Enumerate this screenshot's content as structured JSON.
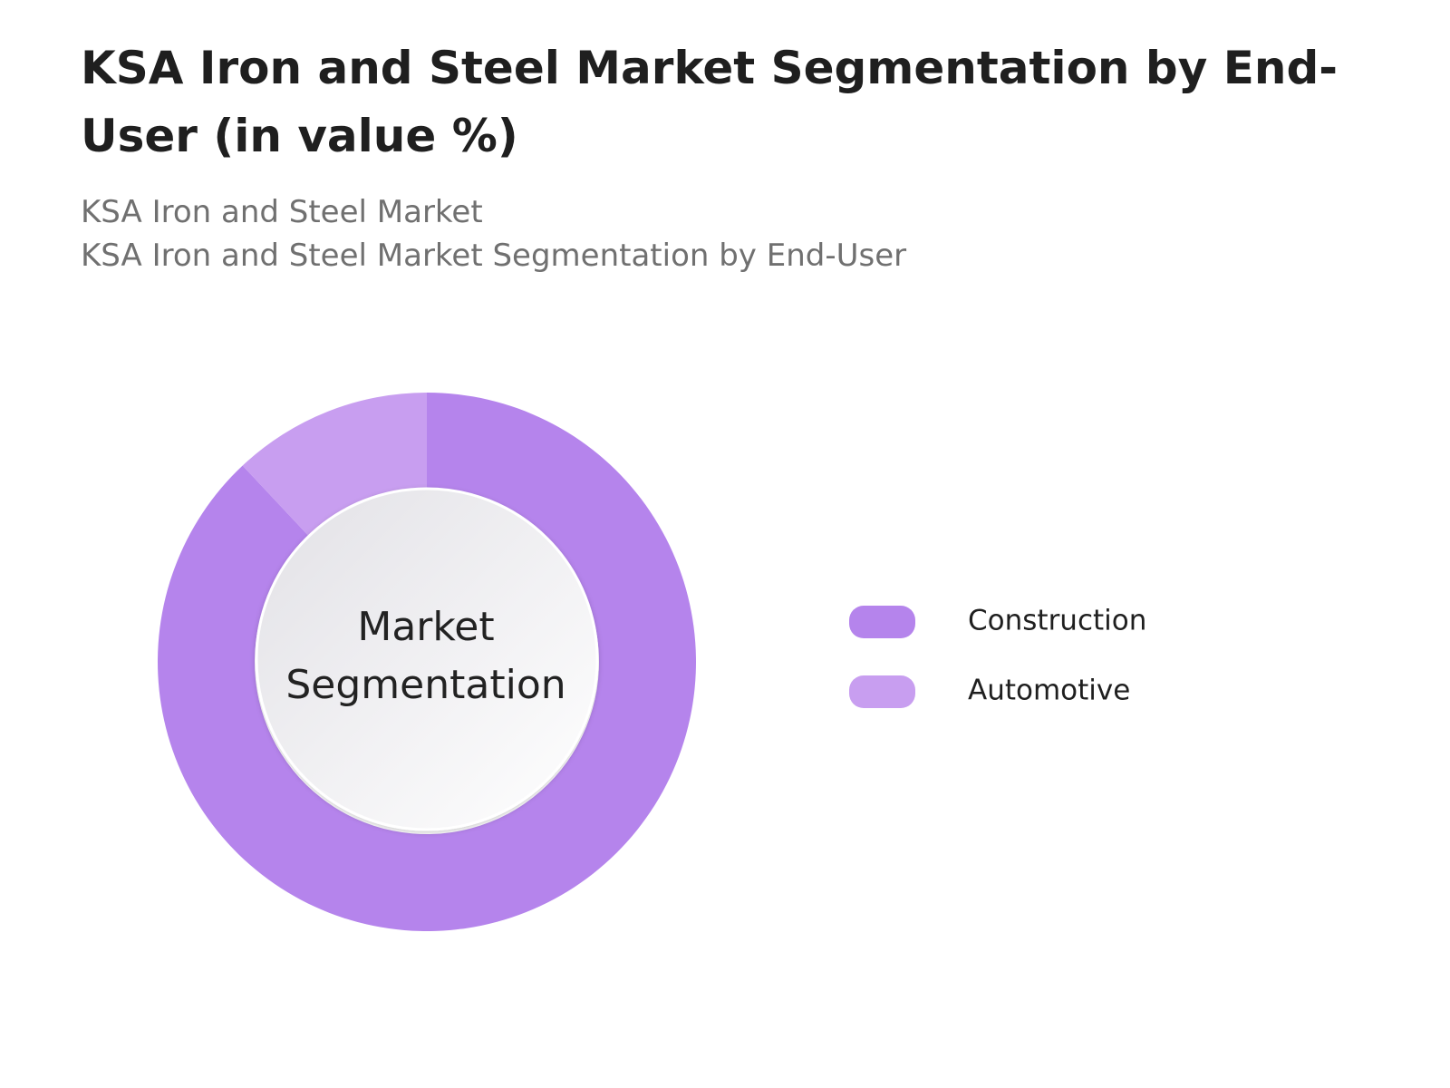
{
  "chart_data": {
    "type": "donut",
    "title": "KSA Iron and Steel Market Segmentation by End-User (in value %)",
    "subtitle": [
      "KSA Iron and Steel Market",
      "KSA Iron and Steel Market Segmentation by End-User"
    ],
    "center_label": "Market Segmentation",
    "categories": [
      "Construction",
      "Automotive"
    ],
    "values": [
      88,
      12
    ],
    "colors": [
      "#b584ec",
      "#c89ef0"
    ],
    "legend": "right"
  }
}
